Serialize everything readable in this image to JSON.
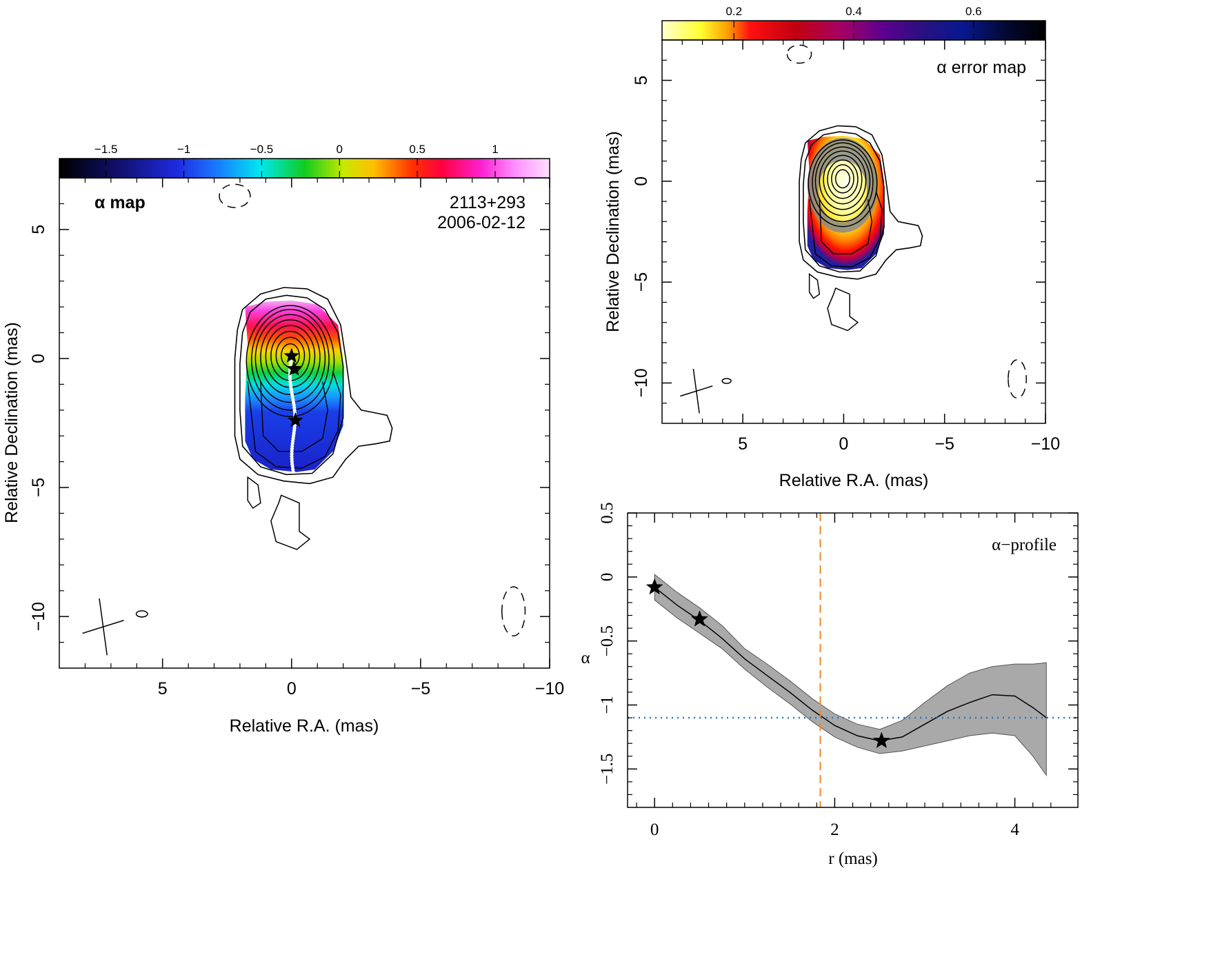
{
  "chart_data": [
    {
      "type": "heatmap",
      "panel": "alpha-map",
      "title": "α map",
      "source_name": "2113+293",
      "obs_date": "2006-02-12",
      "xlabel": "Relative R.A. (mas)",
      "ylabel": "Relative Declination (mas)",
      "xlim": [
        9,
        -10
      ],
      "ylim": [
        -12,
        7
      ],
      "xticks": [
        "5",
        "0",
        "−5",
        "−10"
      ],
      "yticks": [
        "5",
        "0",
        "−5",
        "−10"
      ],
      "colorbar": {
        "range": [
          -1.8,
          1.35
        ],
        "ticks": [
          "−1.5",
          "−1",
          "−0.5",
          "0",
          "0.5",
          "1"
        ],
        "tick_values": [
          -1.5,
          -1,
          -0.5,
          0,
          0.5,
          1
        ],
        "colormap": "rainbow (black-blue-cyan-green-yellow-red-magenta-white)"
      },
      "component_markers": [
        {
          "x": 0.0,
          "y": 0.1
        },
        {
          "x": -0.1,
          "y": -0.4
        },
        {
          "x": -0.15,
          "y": -2.4
        }
      ],
      "ridge_line": {
        "x_start": 0.0,
        "y_start": 0.1,
        "x_end": -0.1,
        "y_end": -4.4
      },
      "beam": {
        "center_x": 7.3,
        "center_y": -10.4
      },
      "grid": false
    },
    {
      "type": "heatmap",
      "panel": "alpha-error-map",
      "title": "α error map",
      "xlabel": "Relative R.A. (mas)",
      "ylabel": "Relative Declination (mas)",
      "xlim": [
        9,
        -10
      ],
      "ylim": [
        -12,
        7
      ],
      "xticks": [
        "5",
        "0",
        "−5",
        "−10"
      ],
      "yticks": [
        "5",
        "0",
        "−5",
        "−10"
      ],
      "colorbar": {
        "range": [
          0.08,
          0.72
        ],
        "ticks": [
          "0.2",
          "0.4",
          "0.6"
        ],
        "tick_values": [
          0.2,
          0.4,
          0.6
        ],
        "colormap": "heat (yellow-red-purple-blue-black)"
      },
      "beam": {
        "center_x": 7.3,
        "center_y": -10.4
      },
      "grid": false
    },
    {
      "type": "line",
      "panel": "alpha-profile",
      "title": "α−profile",
      "xlabel": "r (mas)",
      "ylabel": "α",
      "xlim": [
        -0.3,
        4.7
      ],
      "ylim": [
        -1.8,
        0.5
      ],
      "xticks": [
        "0",
        "2",
        "4"
      ],
      "yticks": [
        "0.5",
        "0",
        "−0.5",
        "−1",
        "−1.5"
      ],
      "series": [
        {
          "x": [
            0.0,
            0.25,
            0.5,
            0.75,
            1.0,
            1.25,
            1.5,
            1.75,
            2.0,
            2.25,
            2.5,
            2.75,
            3.0,
            3.25,
            3.5,
            3.75,
            4.0,
            4.2,
            4.35
          ],
          "values": [
            -0.08,
            -0.22,
            -0.34,
            -0.48,
            -0.64,
            -0.77,
            -0.9,
            -1.04,
            -1.16,
            -1.24,
            -1.28,
            -1.25,
            -1.15,
            -1.05,
            -0.98,
            -0.92,
            -0.93,
            -1.02,
            -1.1
          ],
          "lower": [
            -0.18,
            -0.32,
            -0.44,
            -0.56,
            -0.72,
            -0.86,
            -0.99,
            -1.13,
            -1.25,
            -1.33,
            -1.38,
            -1.36,
            -1.32,
            -1.28,
            -1.24,
            -1.22,
            -1.24,
            -1.4,
            -1.55
          ],
          "upper": [
            0.02,
            -0.12,
            -0.24,
            -0.38,
            -0.56,
            -0.68,
            -0.81,
            -0.95,
            -1.07,
            -1.15,
            -1.19,
            -1.12,
            -0.98,
            -0.85,
            -0.75,
            -0.7,
            -0.68,
            -0.68,
            -0.67
          ]
        }
      ],
      "component_markers": [
        {
          "x": 0.0,
          "y": -0.08
        },
        {
          "x": 0.5,
          "y": -0.33
        },
        {
          "x": 2.52,
          "y": -1.28
        }
      ],
      "reference_lines": {
        "vertical_x": 1.84,
        "horizontal_y": -1.1
      },
      "colors": {
        "vertical": "#f08a24",
        "horizontal": "#1f78d1",
        "band": "#a9a9a9"
      },
      "grid": false
    }
  ]
}
